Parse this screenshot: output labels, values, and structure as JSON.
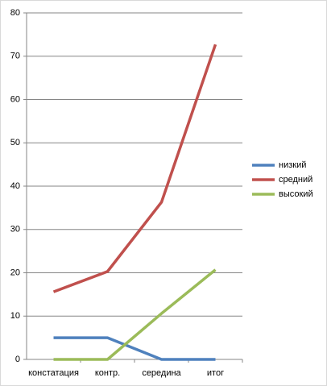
{
  "chart_data": {
    "type": "line",
    "categories": [
      "констатация",
      "контр.",
      "середина",
      "итог"
    ],
    "series": [
      {
        "name": "низкий",
        "color": "#4f81bd",
        "values": [
          5,
          5,
          0,
          0
        ]
      },
      {
        "name": "средний",
        "color": "#c0504d",
        "values": [
          15.6,
          20.3,
          36.3,
          72.7
        ]
      },
      {
        "name": "высокий",
        "color": "#9bbb59",
        "values": [
          0,
          0,
          10.6,
          20.7
        ]
      }
    ],
    "ylim": [
      0,
      80
    ],
    "yticks": [
      0,
      10,
      20,
      30,
      40,
      50,
      60,
      70,
      80
    ],
    "grid": true,
    "legend": "right"
  }
}
